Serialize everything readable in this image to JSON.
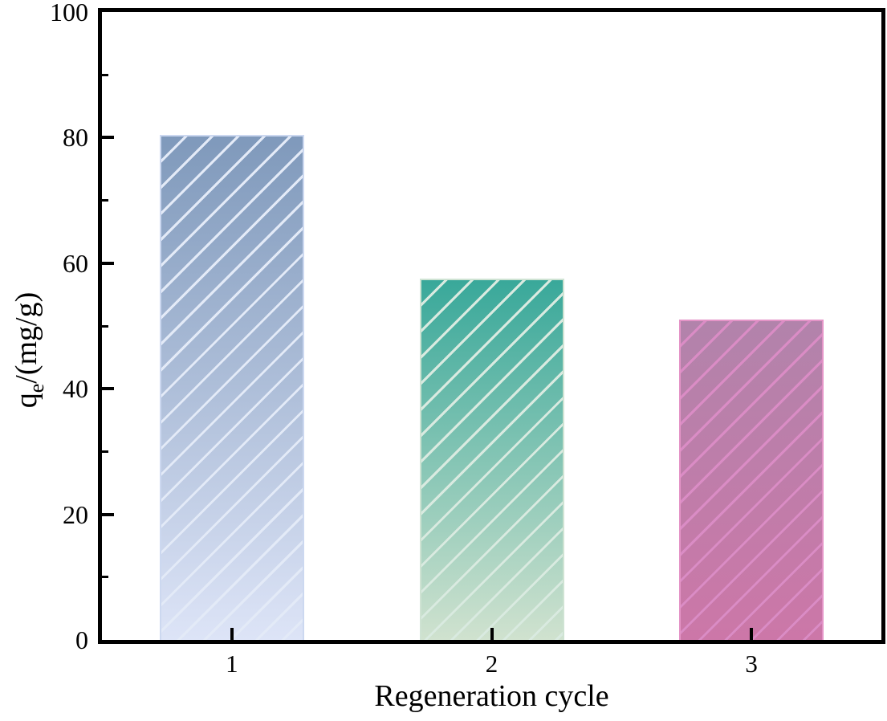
{
  "figure": {
    "background": "#ffffff",
    "axis_color": "#000000",
    "text_color": "#000000"
  },
  "chart_data": {
    "type": "bar",
    "title": "",
    "xlabel": "Regeneration cycle",
    "ylabel": "qe/(mg/g)",
    "ylabel_parts": {
      "base": "q",
      "sub": "e",
      "rest": "/(mg/g)"
    },
    "categories": [
      "1",
      "2",
      "3"
    ],
    "values": [
      80.5,
      57.5,
      51
    ],
    "ylim": [
      0,
      100
    ],
    "yticks_major": [
      "0",
      "20",
      "40",
      "60",
      "80",
      "100"
    ],
    "yticks_major_values": [
      0,
      20,
      40,
      60,
      80,
      100
    ],
    "yticks_minor_values": [
      10,
      30,
      50,
      70,
      90
    ],
    "grid": false,
    "legend": "none",
    "hatch_pattern": "/",
    "bar_styles": [
      {
        "name": "cycle-1",
        "gradient_top": "#7f99bb",
        "gradient_bottom": "#dde4f7",
        "hatch_color": "#e3eaf7",
        "edge_color": "#ccd8f0"
      },
      {
        "name": "cycle-2",
        "gradient_top": "#39a89a",
        "gradient_bottom": "#d0e2cf",
        "hatch_color": "#d9eae0",
        "edge_color": "#cfe3d3"
      },
      {
        "name": "cycle-3",
        "gradient_top": "#b283ab",
        "gradient_bottom": "#cc77a8",
        "hatch_color": "#da8cc5",
        "edge_color": "#e494c7"
      }
    ]
  }
}
